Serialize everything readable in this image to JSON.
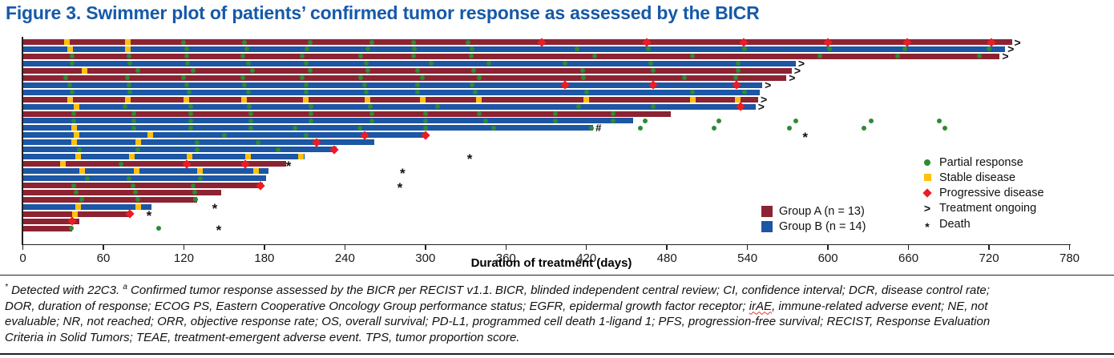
{
  "title": "Figure 3. Swimmer plot of patients’ confirmed tumor response as assessed by the BICR",
  "colors": {
    "title": "#1659A9",
    "group_a": "#8C2332",
    "group_b": "#1C56A4",
    "partial_response": "#2E8B34",
    "stable_disease": "#FFC10E",
    "progressive_disease": "#EC1C24",
    "axis": "#231F20"
  },
  "chart_data": {
    "type": "swimmer-bar",
    "title": "Figure 3. Swimmer plot of patients’ confirmed tumor response as assessed by the BICR",
    "xlabel": "Duration of treatment (days)",
    "xlim": [
      0,
      780
    ],
    "xticks": [
      0,
      60,
      120,
      180,
      240,
      300,
      360,
      420,
      480,
      540,
      600,
      660,
      720,
      780
    ],
    "grid": false,
    "legend_position": "inside-right",
    "groups": [
      {
        "id": "A",
        "label": "Group A (n = 13)",
        "color": "#8C2332"
      },
      {
        "id": "B",
        "label": "Group B (n = 14)",
        "color": "#1C56A4"
      }
    ],
    "marker_legend": [
      {
        "symbol": "circle",
        "color": "#2E8B34",
        "label": "Partial response"
      },
      {
        "symbol": "square",
        "color": "#FFC10E",
        "label": "Stable disease"
      },
      {
        "symbol": "diamond",
        "color": "#EC1C24",
        "label": "Progressive disease"
      },
      {
        "symbol": ">",
        "color": "#111111",
        "label": "Treatment ongoing"
      },
      {
        "symbol": "*",
        "color": "#111111",
        "label": "Death"
      }
    ],
    "patients": [
      {
        "group": "A",
        "end": 737,
        "ongoing": true,
        "death": null,
        "hash": false,
        "events": [
          [
            33,
            "sd"
          ],
          [
            78,
            "sd"
          ],
          [
            120,
            "pr"
          ],
          [
            165,
            "pr"
          ],
          [
            214,
            "pr"
          ],
          [
            260,
            "pr"
          ],
          [
            291,
            "pr"
          ],
          [
            332,
            "pr"
          ],
          [
            387,
            "pd"
          ],
          [
            465,
            "pd"
          ],
          [
            537,
            "pd"
          ],
          [
            600,
            "pd"
          ],
          [
            659,
            "pd"
          ],
          [
            722,
            "pd"
          ]
        ]
      },
      {
        "group": "B",
        "end": 732,
        "ongoing": true,
        "death": null,
        "hash": false,
        "events": [
          [
            35,
            "sd"
          ],
          [
            78,
            "sd"
          ],
          [
            122,
            "pr"
          ],
          [
            167,
            "pr"
          ],
          [
            212,
            "pr"
          ],
          [
            257,
            "pr"
          ],
          [
            292,
            "pr"
          ],
          [
            335,
            "pr"
          ],
          [
            413,
            "pr"
          ],
          [
            466,
            "pr"
          ],
          [
            538,
            "pr"
          ],
          [
            601,
            "pr"
          ],
          [
            657,
            "pr"
          ],
          [
            720,
            "pr"
          ]
        ]
      },
      {
        "group": "A",
        "end": 728,
        "ongoing": true,
        "death": null,
        "hash": false,
        "events": [
          [
            37,
            "pr"
          ],
          [
            79,
            "pr"
          ],
          [
            122,
            "pr"
          ],
          [
            164,
            "pr"
          ],
          [
            208,
            "pr"
          ],
          [
            252,
            "pr"
          ],
          [
            291,
            "pr"
          ],
          [
            334,
            "pr"
          ],
          [
            426,
            "pr"
          ],
          [
            499,
            "pr"
          ],
          [
            594,
            "pr"
          ],
          [
            652,
            "pr"
          ],
          [
            713,
            "pr"
          ]
        ]
      },
      {
        "group": "B",
        "end": 576,
        "ongoing": true,
        "death": null,
        "hash": false,
        "events": [
          [
            37,
            "pr"
          ],
          [
            80,
            "pr"
          ],
          [
            123,
            "pr"
          ],
          [
            168,
            "pr"
          ],
          [
            211,
            "pr"
          ],
          [
            256,
            "pr"
          ],
          [
            304,
            "pr"
          ],
          [
            347,
            "pr"
          ],
          [
            404,
            "pr"
          ],
          [
            468,
            "pr"
          ],
          [
            533,
            "pr"
          ]
        ]
      },
      {
        "group": "A",
        "end": 573,
        "ongoing": true,
        "death": null,
        "hash": false,
        "events": [
          [
            46,
            "sd"
          ],
          [
            86,
            "pr"
          ],
          [
            127,
            "pr"
          ],
          [
            171,
            "pr"
          ],
          [
            214,
            "pr"
          ],
          [
            257,
            "pr"
          ],
          [
            294,
            "pr"
          ],
          [
            336,
            "pr"
          ],
          [
            417,
            "pr"
          ],
          [
            470,
            "pr"
          ],
          [
            533,
            "pr"
          ]
        ]
      },
      {
        "group": "A",
        "end": 569,
        "ongoing": true,
        "death": null,
        "hash": false,
        "events": [
          [
            32,
            "pr"
          ],
          [
            78,
            "pr"
          ],
          [
            120,
            "pr"
          ],
          [
            164,
            "pr"
          ],
          [
            208,
            "pr"
          ],
          [
            252,
            "pr"
          ],
          [
            298,
            "pr"
          ],
          [
            340,
            "pr"
          ],
          [
            418,
            "pr"
          ],
          [
            493,
            "pr"
          ],
          [
            531,
            "pr"
          ]
        ]
      },
      {
        "group": "B",
        "end": 551,
        "ongoing": true,
        "death": null,
        "hash": false,
        "events": [
          [
            35,
            "pr"
          ],
          [
            79,
            "pr"
          ],
          [
            122,
            "pr"
          ],
          [
            165,
            "pr"
          ],
          [
            211,
            "pr"
          ],
          [
            255,
            "pr"
          ],
          [
            294,
            "pr"
          ],
          [
            335,
            "pr"
          ],
          [
            404,
            "pd"
          ],
          [
            470,
            "pd"
          ],
          [
            532,
            "pd"
          ]
        ]
      },
      {
        "group": "B",
        "end": 549,
        "ongoing": false,
        "death": null,
        "hash": false,
        "events": [
          [
            37,
            "pr"
          ],
          [
            80,
            "pr"
          ],
          [
            124,
            "pr"
          ],
          [
            168,
            "pr"
          ],
          [
            211,
            "pr"
          ],
          [
            256,
            "pr"
          ],
          [
            294,
            "pr"
          ],
          [
            337,
            "pr"
          ],
          [
            420,
            "pr"
          ],
          [
            499,
            "pr"
          ],
          [
            538,
            "pr"
          ]
        ]
      },
      {
        "group": "A",
        "end": 548,
        "ongoing": true,
        "death": null,
        "hash": false,
        "events": [
          [
            35,
            "sd"
          ],
          [
            78,
            "sd"
          ],
          [
            122,
            "sd"
          ],
          [
            165,
            "sd"
          ],
          [
            211,
            "sd"
          ],
          [
            257,
            "sd"
          ],
          [
            298,
            "sd"
          ],
          [
            340,
            "sd"
          ],
          [
            420,
            "sd"
          ],
          [
            499,
            "sd"
          ],
          [
            533,
            "sd"
          ]
        ]
      },
      {
        "group": "B",
        "end": 546,
        "ongoing": true,
        "death": null,
        "hash": false,
        "events": [
          [
            40,
            "sd"
          ],
          [
            76,
            "pr"
          ],
          [
            125,
            "pr"
          ],
          [
            169,
            "pr"
          ],
          [
            215,
            "pr"
          ],
          [
            259,
            "pr"
          ],
          [
            309,
            "pr"
          ],
          [
            414,
            "pr"
          ],
          [
            470,
            "pr"
          ],
          [
            535,
            "pd"
          ]
        ]
      },
      {
        "group": "A",
        "end": 483,
        "ongoing": false,
        "death": null,
        "hash": false,
        "events": [
          [
            38,
            "pr"
          ],
          [
            83,
            "pr"
          ],
          [
            125,
            "pr"
          ],
          [
            170,
            "pr"
          ],
          [
            215,
            "pr"
          ],
          [
            260,
            "pr"
          ],
          [
            300,
            "pr"
          ],
          [
            340,
            "pr"
          ],
          [
            397,
            "pr"
          ],
          [
            440,
            "pr"
          ]
        ]
      },
      {
        "group": "B",
        "end": 455,
        "ongoing": false,
        "death": null,
        "hash": false,
        "events": [
          [
            38,
            "pr"
          ],
          [
            83,
            "pr"
          ],
          [
            125,
            "pr"
          ],
          [
            170,
            "pr"
          ],
          [
            215,
            "pr"
          ],
          [
            260,
            "pr"
          ],
          [
            300,
            "pr"
          ],
          [
            345,
            "pr"
          ],
          [
            397,
            "pr"
          ],
          [
            440,
            "pr"
          ],
          [
            464,
            "pr"
          ],
          [
            519,
            "pr"
          ],
          [
            576,
            "pr"
          ],
          [
            632,
            "pr"
          ],
          [
            683,
            "pr"
          ]
        ]
      },
      {
        "group": "B",
        "end": 425,
        "ongoing": false,
        "death": null,
        "hash": true,
        "events": [
          [
            38,
            "sd"
          ],
          [
            83,
            "pr"
          ],
          [
            125,
            "pr"
          ],
          [
            170,
            "pr"
          ],
          [
            203,
            "pr"
          ],
          [
            251,
            "pr"
          ],
          [
            300,
            "pr"
          ],
          [
            351,
            "pr"
          ],
          [
            424,
            "pr"
          ],
          [
            460,
            "pr"
          ],
          [
            515,
            "pr"
          ],
          [
            571,
            "pr"
          ],
          [
            627,
            "pr"
          ],
          [
            687,
            "pr"
          ]
        ]
      },
      {
        "group": "B",
        "end": 300,
        "ongoing": false,
        "death": 584,
        "hash": false,
        "events": [
          [
            40,
            "sd"
          ],
          [
            95,
            "sd"
          ],
          [
            150,
            "pr"
          ],
          [
            211,
            "pr"
          ],
          [
            255,
            "pd"
          ],
          [
            300,
            "pd"
          ]
        ]
      },
      {
        "group": "B",
        "end": 262,
        "ongoing": false,
        "death": null,
        "hash": false,
        "events": [
          [
            38,
            "sd"
          ],
          [
            86,
            "sd"
          ],
          [
            130,
            "pr"
          ],
          [
            175,
            "pr"
          ],
          [
            219,
            "pd"
          ]
        ]
      },
      {
        "group": "B",
        "end": 234,
        "ongoing": false,
        "death": null,
        "hash": false,
        "events": [
          [
            42,
            "pr"
          ],
          [
            86,
            "pr"
          ],
          [
            130,
            "pr"
          ],
          [
            190,
            "pr"
          ],
          [
            232,
            "pd"
          ]
        ]
      },
      {
        "group": "B",
        "end": 210,
        "ongoing": false,
        "death": 334,
        "hash": false,
        "events": [
          [
            41,
            "sd"
          ],
          [
            81,
            "sd"
          ],
          [
            124,
            "sd"
          ],
          [
            168,
            "sd"
          ],
          [
            207,
            "sd"
          ]
        ]
      },
      {
        "group": "A",
        "end": 196,
        "ongoing": false,
        "death": 199,
        "hash": false,
        "events": [
          [
            30,
            "sd"
          ],
          [
            73,
            "pr"
          ],
          [
            122,
            "pd"
          ],
          [
            166,
            "pd"
          ]
        ]
      },
      {
        "group": "B",
        "end": 183,
        "ongoing": false,
        "death": 284,
        "hash": false,
        "events": [
          [
            44,
            "sd"
          ],
          [
            85,
            "sd"
          ],
          [
            132,
            "sd"
          ],
          [
            174,
            "sd"
          ]
        ]
      },
      {
        "group": "B",
        "end": 181,
        "ongoing": false,
        "death": null,
        "hash": false,
        "events": [
          [
            48,
            "pr"
          ],
          [
            79,
            "pr"
          ],
          [
            132,
            "pr"
          ]
        ]
      },
      {
        "group": "A",
        "end": 179,
        "ongoing": false,
        "death": 282,
        "hash": false,
        "events": [
          [
            38,
            "pr"
          ],
          [
            82,
            "pr"
          ],
          [
            127,
            "pr"
          ],
          [
            177,
            "pd"
          ]
        ]
      },
      {
        "group": "A",
        "end": 148,
        "ongoing": false,
        "death": null,
        "hash": false,
        "events": [
          [
            40,
            "pr"
          ],
          [
            84,
            "pr"
          ],
          [
            128,
            "pr"
          ]
        ]
      },
      {
        "group": "A",
        "end": 130,
        "ongoing": false,
        "death": null,
        "hash": false,
        "events": [
          [
            44,
            "pr"
          ],
          [
            86,
            "pr"
          ],
          [
            129,
            "pr"
          ]
        ]
      },
      {
        "group": "B",
        "end": 96,
        "ongoing": false,
        "death": 144,
        "hash": false,
        "events": [
          [
            41,
            "sd"
          ],
          [
            86,
            "sd"
          ]
        ]
      },
      {
        "group": "A",
        "end": 81,
        "ongoing": false,
        "death": 95,
        "hash": false,
        "events": [
          [
            39,
            "sd"
          ],
          [
            80,
            "pd"
          ]
        ]
      },
      {
        "group": "A",
        "end": 42,
        "ongoing": false,
        "death": null,
        "hash": false,
        "events": [
          [
            37,
            "pd"
          ]
        ]
      },
      {
        "group": "A",
        "end": 37,
        "ongoing": false,
        "death": 147,
        "hash": false,
        "events": [
          [
            36,
            "pr"
          ],
          [
            101,
            "pr"
          ]
        ]
      }
    ]
  },
  "footnote": {
    "lines": [
      [
        {
          "t": "*",
          "sup": true
        },
        {
          "t": " Detected with 22C3. "
        },
        {
          "t": "a",
          "sup": true
        },
        {
          "t": " Confirmed tumor response assessed by the BICR per RECIST v1.1. BICR, blinded independent central review; CI, confidence interval; DCR, disease control rate;"
        }
      ],
      [
        {
          "t": "DOR, duration of response; ECOG PS, Eastern Cooperative Oncology Group performance status; EGFR, epidermal growth factor receptor; "
        },
        {
          "t": "irAE",
          "wavy": true
        },
        {
          "t": ", immune-related adverse event; NE, not"
        }
      ],
      [
        {
          "t": "evaluable; NR, not reached; ORR, objective response rate; OS, overall survival; PD-L1, programmed cell death 1-ligand 1; PFS, progression-free survival; RECIST, Response Evaluation"
        }
      ],
      [
        {
          "t": "Criteria in Solid Tumors; TEAE, treatment-emergent adverse event. TPS, tumor proportion score."
        }
      ]
    ]
  }
}
